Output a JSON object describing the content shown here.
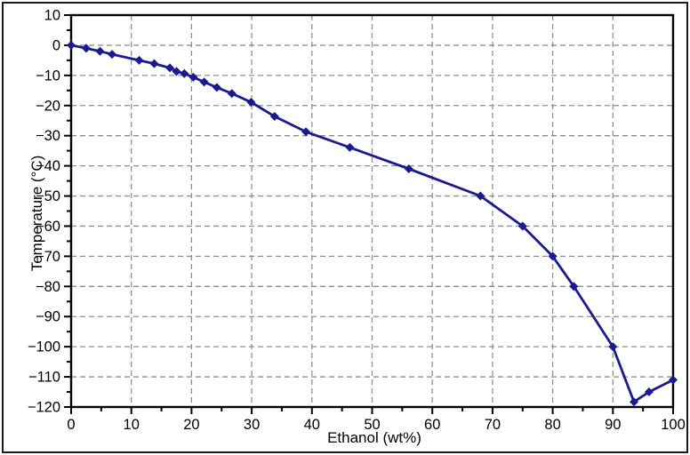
{
  "chart_data": {
    "type": "line",
    "title": "",
    "xlabel": "Ethanol (wt%)",
    "ylabel": "Temperature (°C)",
    "xlim": [
      0,
      100
    ],
    "ylim": [
      -120,
      10
    ],
    "x_major_ticks": [
      0,
      10,
      20,
      30,
      40,
      50,
      60,
      70,
      80,
      90,
      100
    ],
    "x_minor_ticks": [
      5,
      15,
      25,
      35,
      45,
      55,
      65,
      75,
      85,
      95
    ],
    "y_major_ticks": [
      10,
      0,
      -10,
      -20,
      -30,
      -40,
      -50,
      -60,
      -70,
      -80,
      -90,
      -100,
      -110,
      -120
    ],
    "y_minor_ticks": [
      5,
      -5,
      -15,
      -25,
      -35,
      -45,
      -55,
      -65,
      -75,
      -85,
      -95,
      -105,
      -115
    ],
    "grid": "dashed gray lines at every major tick, both axes",
    "legend": "none",
    "marker": "filled diamond",
    "colors": {
      "line": "#1b1b8f",
      "grid": "#8f8f8f",
      "axis": "#000000",
      "background": "#ffffff",
      "outer_border": "#1a1a1a"
    },
    "series": [
      {
        "x": [
          0,
          2.5,
          4.8,
          6.8,
          11.3,
          13.8,
          16.4,
          17.5,
          18.8,
          20.3,
          22.1,
          24.2,
          26.7,
          29.9,
          33.8,
          39.0,
          46.3,
          56.1,
          68.0,
          75.0,
          80.0,
          83.5,
          90.0,
          93.5,
          96.0,
          100.0
        ],
        "y": [
          0,
          -1.0,
          -2.0,
          -3.0,
          -5.0,
          -6.1,
          -7.5,
          -8.7,
          -9.4,
          -10.6,
          -12.2,
          -14.0,
          -16.0,
          -18.9,
          -23.6,
          -28.7,
          -33.9,
          -41.0,
          -50.0,
          -60.0,
          -70.0,
          -80.0,
          -100.0,
          -118.3,
          -115.0,
          -111.0
        ]
      }
    ]
  }
}
